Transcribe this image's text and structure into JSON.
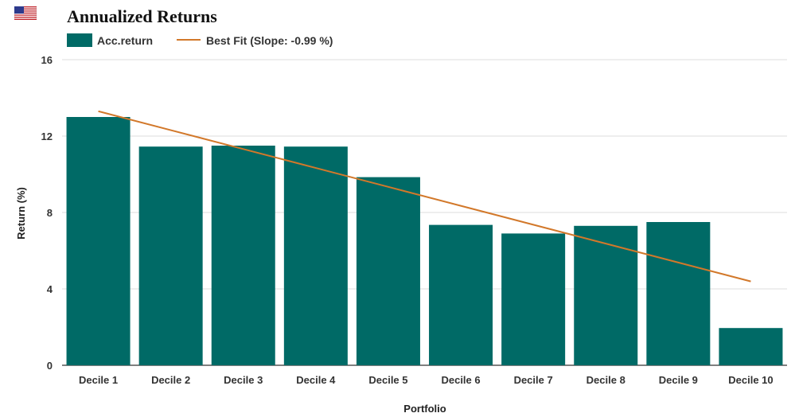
{
  "header": {
    "title": "Annualized Returns",
    "flag_icon": "us-flag-icon"
  },
  "colors": {
    "bar": "#006A66",
    "fit_line": "#D2782A",
    "grid": "#dddddd"
  },
  "chart_data": {
    "type": "bar",
    "title": "Annualized Returns",
    "xlabel": "Portfolio",
    "ylabel": "Return (%)",
    "ylim": [
      0,
      16
    ],
    "yticks": [
      0,
      4,
      8,
      12,
      16
    ],
    "grid": true,
    "legend_placement": "top-left",
    "categories": [
      "Decile 1",
      "Decile 2",
      "Decile 3",
      "Decile 4",
      "Decile 5",
      "Decile 6",
      "Decile 7",
      "Decile 8",
      "Decile 9",
      "Decile 10"
    ],
    "series": [
      {
        "name": "Acc.return",
        "type": "bar",
        "values": [
          13.0,
          11.45,
          11.5,
          11.45,
          9.85,
          7.35,
          6.9,
          7.3,
          7.5,
          1.95
        ]
      },
      {
        "name": "Best Fit (Slope: -0.99 %)",
        "type": "line",
        "values": [
          13.3,
          12.31,
          11.32,
          10.33,
          9.34,
          8.35,
          7.36,
          6.37,
          5.38,
          4.39
        ]
      }
    ]
  }
}
